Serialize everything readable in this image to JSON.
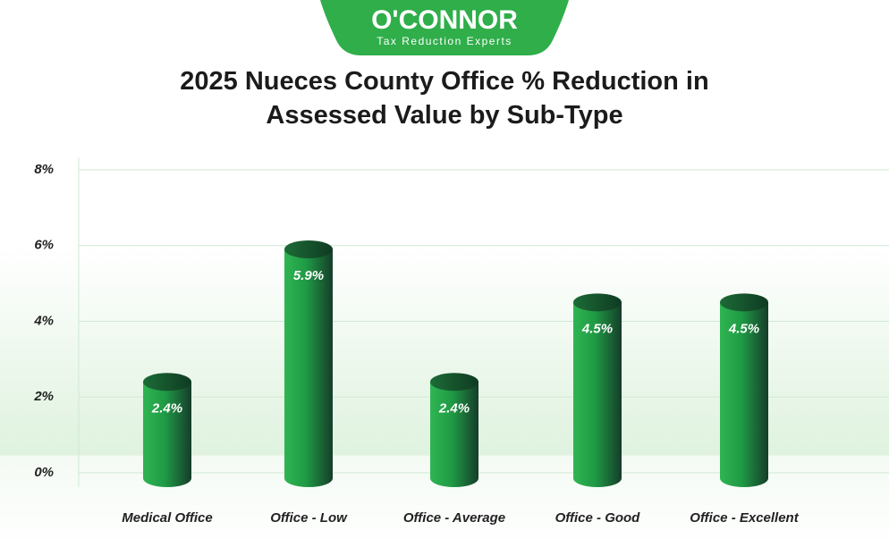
{
  "logo": {
    "name": "O'CONNOR",
    "tagline": "Tax Reduction Experts"
  },
  "chart_data": {
    "type": "bar",
    "title": "2025 Nueces County Office % Reduction in Assessed Value by Sub-Type",
    "categories": [
      "Medical Office",
      "Office - Low",
      "Office - Average",
      "Office - Good",
      "Office - Excellent"
    ],
    "values": [
      2.4,
      5.9,
      2.4,
      4.5,
      4.5
    ],
    "value_labels": [
      "2.4%",
      "5.9%",
      "2.4%",
      "4.5%",
      "4.5%"
    ],
    "color": "#1f9a45",
    "ylim": [
      0,
      8
    ],
    "yticks": [
      {
        "value": 0,
        "label": "0%"
      },
      {
        "value": 2,
        "label": "2%"
      },
      {
        "value": 4,
        "label": "4%"
      },
      {
        "value": 6,
        "label": "6%"
      },
      {
        "value": 8,
        "label": "8%"
      }
    ],
    "grid": true
  }
}
